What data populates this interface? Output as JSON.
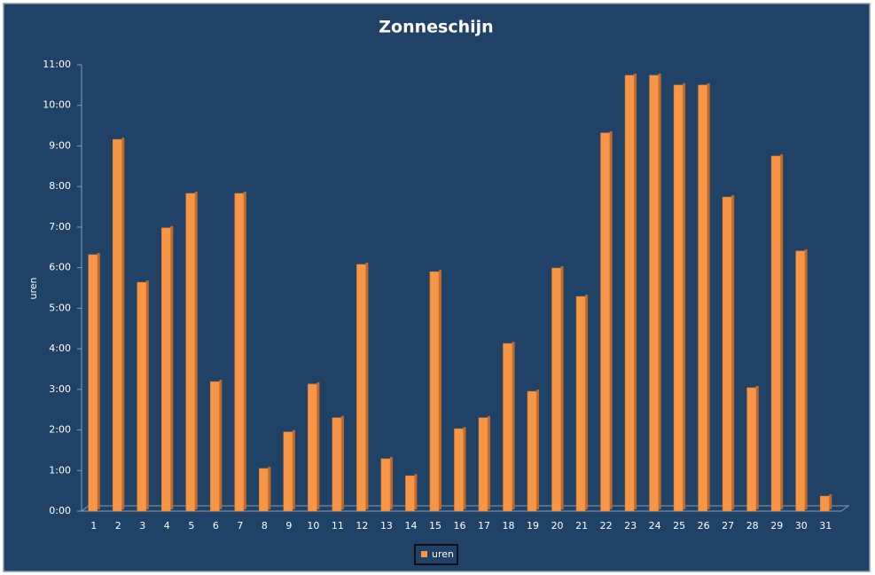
{
  "chart_data": {
    "type": "bar",
    "title": "Zonneschijn",
    "y_label": "uren",
    "categories": [
      "1",
      "2",
      "3",
      "4",
      "5",
      "6",
      "7",
      "8",
      "9",
      "10",
      "11",
      "12",
      "13",
      "14",
      "15",
      "16",
      "17",
      "18",
      "19",
      "20",
      "21",
      "22",
      "23",
      "24",
      "25",
      "26",
      "27",
      "28",
      "29",
      "30",
      "31"
    ],
    "series": [
      {
        "name": "uren",
        "color": "#f79646",
        "values": [
          6.32,
          9.16,
          5.64,
          6.98,
          7.83,
          3.19,
          7.83,
          1.05,
          1.95,
          3.13,
          2.3,
          6.08,
          1.29,
          0.87,
          5.9,
          2.03,
          2.3,
          4.13,
          2.95,
          5.99,
          5.29,
          9.32,
          10.74,
          10.74,
          10.5,
          10.5,
          7.74,
          3.04,
          8.75,
          6.41,
          0.37
        ]
      }
    ],
    "ylim": [
      0,
      11
    ],
    "yticks": [
      {
        "value": 0,
        "label": "0:00"
      },
      {
        "value": 1,
        "label": "1:00"
      },
      {
        "value": 2,
        "label": "2:00"
      },
      {
        "value": 3,
        "label": "3:00"
      },
      {
        "value": 4,
        "label": "4:00"
      },
      {
        "value": 5,
        "label": "5:00"
      },
      {
        "value": 6,
        "label": "6:00"
      },
      {
        "value": 7,
        "label": "7:00"
      },
      {
        "value": 8,
        "label": "8:00"
      },
      {
        "value": 9,
        "label": "9:00"
      },
      {
        "value": 10,
        "label": "10:00"
      },
      {
        "value": 11,
        "label": "11:00"
      }
    ],
    "legend": "bottom"
  }
}
